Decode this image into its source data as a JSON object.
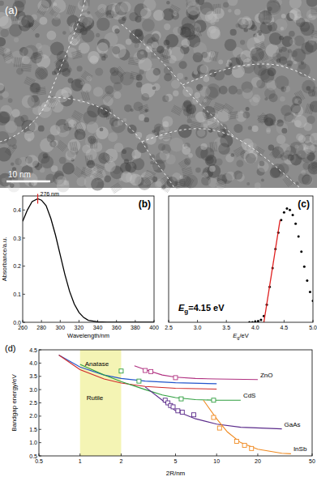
{
  "image_panel": {
    "label": "(a)",
    "scale_bar": "10 nm"
  },
  "chart_data": [
    {
      "type": "line",
      "title": "(b)",
      "xlabel": "Wavelength/nm",
      "ylabel": "Absorbance/a.u.",
      "x": [
        260,
        265,
        270,
        276,
        280,
        285,
        290,
        295,
        300,
        305,
        310,
        315,
        320,
        325,
        330,
        340,
        350,
        360,
        380,
        400
      ],
      "values": [
        0.36,
        0.4,
        0.43,
        0.44,
        0.435,
        0.415,
        0.37,
        0.31,
        0.24,
        0.17,
        0.11,
        0.065,
        0.035,
        0.017,
        0.007,
        0.002,
        0,
        0,
        0,
        0
      ],
      "color": "#000000",
      "xlim": [
        260,
        400
      ],
      "xticks": [
        260,
        280,
        300,
        320,
        340,
        360,
        380,
        400
      ],
      "ylim": [
        0,
        0.45
      ],
      "yticks": [
        {
          "value": 0,
          "label": "0.0"
        },
        0.1,
        0.2,
        0.3,
        0.4
      ],
      "annotation": {
        "x": 276,
        "y": 0.44,
        "label": "276 nm",
        "color": "#e02020"
      }
    },
    {
      "type": "scatter",
      "title": "(c)",
      "xlabel": {
        "symbol": "E",
        "subscript": "g",
        "text": "/eV"
      },
      "x": [
        3.9,
        3.95,
        4.0,
        4.05,
        4.1,
        4.15,
        4.2,
        4.25,
        4.3,
        4.35,
        4.4,
        4.45,
        4.5,
        4.55,
        4.6,
        4.65,
        4.7,
        4.75,
        4.8,
        4.85,
        4.9,
        4.95,
        5.0
      ],
      "values": [
        0,
        0,
        0.005,
        0.01,
        0.02,
        0.05,
        0.14,
        0.28,
        0.43,
        0.58,
        0.71,
        0.81,
        0.87,
        0.9,
        0.89,
        0.85,
        0.78,
        0.68,
        0.56,
        0.44,
        0.33,
        0.24,
        0.17
      ],
      "color": "#000000",
      "marker": "circle",
      "xlim": [
        2.5,
        5.0
      ],
      "xticks": [
        2.5,
        {
          "value": 3,
          "label": "3.0"
        },
        3.5,
        {
          "value": 4,
          "label": "4.0"
        },
        4.5,
        {
          "value": 5,
          "label": "5.0"
        }
      ],
      "ylim": [
        0,
        1
      ],
      "tick_labels": "x",
      "fit": {
        "x": [
          4.15,
          4.43
        ],
        "values": [
          0,
          0.81
        ],
        "color": "#e02020"
      },
      "annotation": {
        "symbol": "E",
        "subscript": "g",
        "text": "=4.15 eV"
      }
    },
    {
      "type": "line",
      "title": "(d)",
      "xlabel": "2R/nm",
      "ylabel": "Bandgap energy/eV",
      "log": "x",
      "xlim": [
        0.5,
        50
      ],
      "xticks": [
        0.5,
        1,
        2,
        5,
        10,
        20,
        50
      ],
      "ylim": [
        0.5,
        4.5
      ],
      "yticks": [
        0.5,
        {
          "value": 1,
          "label": "1.0"
        },
        1.5,
        {
          "value": 2,
          "label": "2.0"
        },
        2.5,
        {
          "value": 3,
          "label": "3.0"
        },
        3.5,
        {
          "value": 4,
          "label": "4.0"
        },
        4.5
      ],
      "highlight": {
        "x": [
          1,
          2
        ],
        "color": "#f4f4b4"
      },
      "series": [
        {
          "name": "Anatase",
          "color": "#2255cc",
          "x": [
            0.7,
            1,
            1.5,
            2,
            3,
            5,
            10
          ],
          "values": [
            4.3,
            3.85,
            3.55,
            3.42,
            3.32,
            3.26,
            3.22
          ]
        },
        {
          "name": "Rutile",
          "color": "#d02828",
          "x": [
            0.7,
            1,
            1.5,
            2,
            3,
            5,
            10
          ],
          "values": [
            4.3,
            3.75,
            3.4,
            3.25,
            3.12,
            3.05,
            3.02
          ]
        },
        {
          "name": "ZnO",
          "color": "#b03080",
          "x": [
            2.5,
            3,
            4,
            5,
            7,
            10,
            20
          ],
          "values": [
            3.9,
            3.75,
            3.55,
            3.47,
            3.42,
            3.4,
            3.38
          ],
          "points": {
            "x": [
              3,
              3.3,
              5
            ],
            "values": [
              3.72,
              3.68,
              3.45
            ],
            "marker": "square"
          }
        },
        {
          "name": "CdS",
          "color": "#2e9e3e",
          "x": [
            1,
            1.5,
            2,
            3,
            4,
            5,
            7,
            10,
            15
          ],
          "values": [
            3.95,
            3.55,
            3.3,
            3.0,
            2.8,
            2.7,
            2.62,
            2.6,
            2.6
          ],
          "points": {
            "x": [
              2,
              2.7,
              5.5,
              9.5
            ],
            "values": [
              3.7,
              3.32,
              2.65,
              2.6
            ],
            "marker": "square"
          }
        },
        {
          "name": "GaAs",
          "color": "#5a2a8a",
          "x": [
            3,
            4,
            5,
            7,
            10,
            15,
            30
          ],
          "values": [
            3.1,
            2.6,
            2.2,
            1.9,
            1.7,
            1.58,
            1.52
          ],
          "points": {
            "x": [
              4.2,
              4.4,
              4.6,
              4.8,
              5.2,
              5.6,
              6.8
            ],
            "values": [
              2.6,
              2.5,
              2.4,
              2.35,
              2.2,
              2.15,
              2.05
            ],
            "marker": "square"
          }
        },
        {
          "name": "InSb",
          "color": "#f08a20",
          "x": [
            8,
            10,
            12,
            15,
            20,
            30,
            35
          ],
          "values": [
            2.6,
            1.9,
            1.4,
            1.0,
            0.75,
            0.6,
            0.58
          ],
          "points": {
            "x": [
              9.5,
              10.5,
              14,
              16,
              18
            ],
            "values": [
              1.95,
              1.55,
              1.05,
              0.9,
              0.78
            ],
            "marker": "square"
          }
        }
      ]
    }
  ]
}
